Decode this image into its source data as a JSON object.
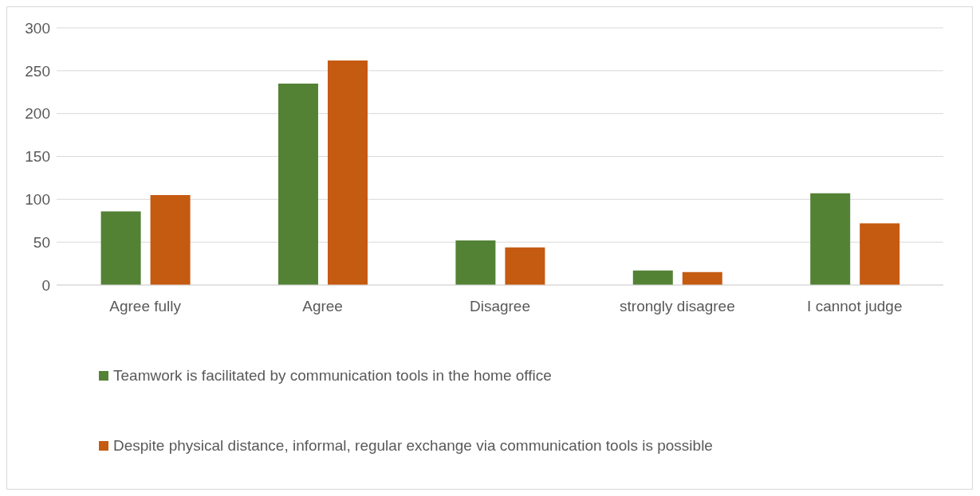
{
  "chart_data": {
    "type": "bar",
    "categories": [
      "Agree fully",
      "Agree",
      "Disagree",
      "strongly disagree",
      "I cannot judge"
    ],
    "series": [
      {
        "name": "Teamwork is facilitated by communication tools in the home office",
        "color": "#548235",
        "values": [
          86,
          235,
          52,
          17,
          107
        ]
      },
      {
        "name": "Despite physical distance, informal, regular exchange via communication tools is possible",
        "color": "#c55a11",
        "values": [
          105,
          262,
          44,
          15,
          72
        ]
      }
    ],
    "ylim": [
      0,
      300
    ],
    "yticks": [
      0,
      50,
      100,
      150,
      200,
      250,
      300
    ],
    "grid": "y",
    "legend": "bottom"
  }
}
